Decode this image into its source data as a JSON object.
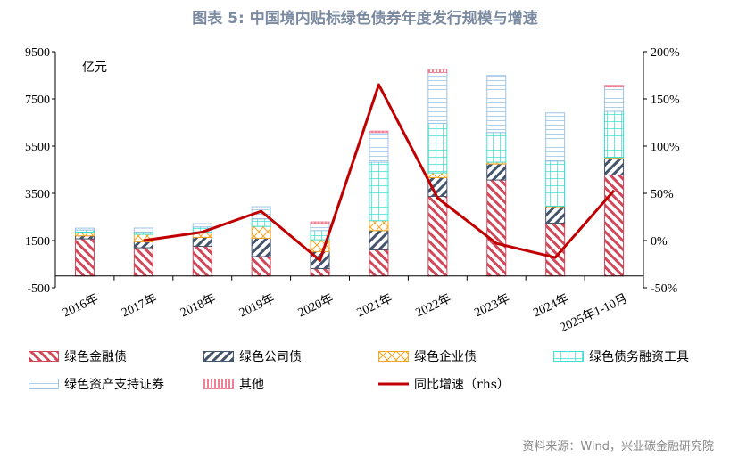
{
  "title": "图表 5:  中国境内贴标绿色债券年度发行规模与增速",
  "source": "资料来源：Wind，兴业碳金融研究院",
  "chart_data": {
    "type": "bar",
    "stacked": true,
    "categories": [
      "2016年",
      "2017年",
      "2018年",
      "2019年",
      "2020年",
      "2021年",
      "2022年",
      "2023年",
      "2024年",
      "2025年1-10月"
    ],
    "unit_label": "亿元",
    "ylim": [
      -500,
      9500
    ],
    "yticks": [
      -500,
      1500,
      3500,
      5500,
      7500,
      9500
    ],
    "y2lim": [
      -50,
      200
    ],
    "y2ticks": [
      "-50%",
      "0%",
      "50%",
      "100%",
      "150%",
      "200%"
    ],
    "y2tick_values": [
      -50,
      0,
      50,
      100,
      150,
      200
    ],
    "series": [
      {
        "name": "绿色金融债",
        "color": "#d0485a",
        "pattern": "diag-down",
        "values": [
          1574,
          1196,
          1257,
          819,
          313,
          1107,
          3370,
          4064,
          2238,
          4276
        ]
      },
      {
        "name": "绿色公司债",
        "color": "#44546a",
        "pattern": "diag-up",
        "values": [
          125,
          250,
          377,
          778,
          717,
          818,
          792,
          679,
          694,
          705
        ]
      },
      {
        "name": "绿色企业债",
        "color": "#f5a623",
        "pattern": "cross",
        "values": [
          160,
          317,
          226,
          503,
          505,
          415,
          204,
          75,
          23,
          38
        ]
      },
      {
        "name": "绿色债务融资工具",
        "color": "#40e0d0",
        "pattern": "grid",
        "values": [
          90,
          100,
          215,
          315,
          390,
          2478,
          2098,
          1257,
          1913,
          1951
        ]
      },
      {
        "name": "绿色资产支持证券",
        "color": "#9dc3e6",
        "pattern": "hlines",
        "values": [
          75,
          165,
          140,
          517,
          301,
          1257,
          2151,
          2416,
          2038,
          1041
        ]
      },
      {
        "name": "其他",
        "color": "#f08096",
        "pattern": "vlines",
        "values": [
          0,
          0,
          0,
          0,
          64,
          60,
          140,
          0,
          0,
          64
        ]
      }
    ],
    "line_series": {
      "name": "同比增速（rhs）",
      "color": "#c00000",
      "axis": "right",
      "values": [
        null,
        0,
        9,
        31,
        -21,
        165,
        45,
        -3,
        -18,
        53
      ]
    },
    "legend": "bottom"
  }
}
